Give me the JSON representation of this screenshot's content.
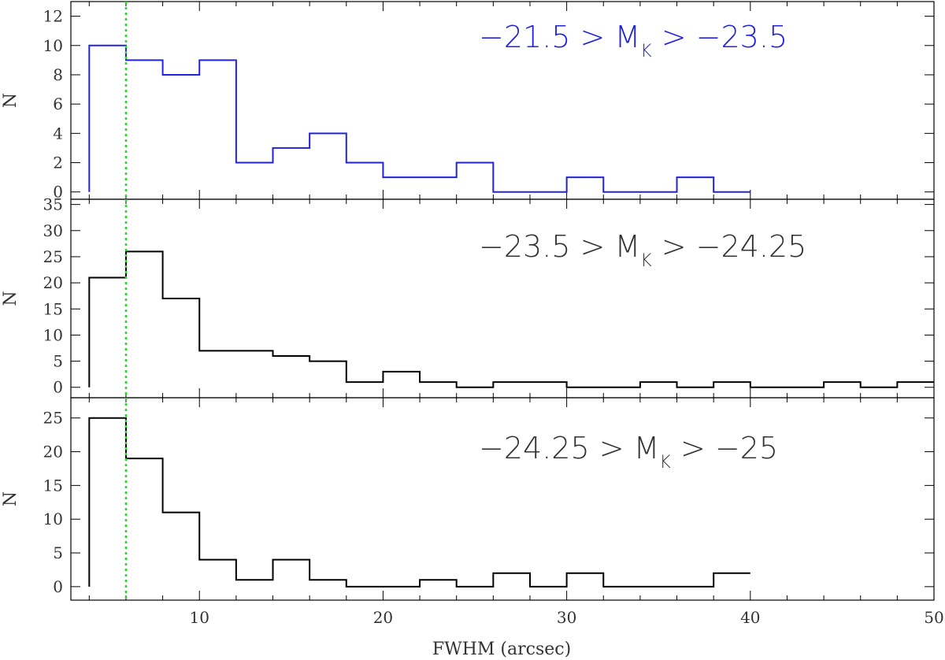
{
  "chart_data": {
    "type": "histogram",
    "xlabel": "FWHM (arcsec)",
    "xlim": [
      3,
      50
    ],
    "xticks": [
      10,
      20,
      30,
      40,
      50
    ],
    "reference_line": {
      "x": 6,
      "color": "#22dd22",
      "style": "dotted"
    },
    "panels": [
      {
        "ylabel": "N",
        "ylim": [
          -0.5,
          13
        ],
        "yticks": [
          0,
          2,
          4,
          6,
          8,
          10,
          12
        ],
        "annotation": {
          "prefix": "−21.5 > M",
          "sub": "K",
          "suffix": " > −23.5"
        },
        "color": "#2222dd",
        "bin_edges": [
          4,
          6,
          8,
          10,
          12,
          14,
          16,
          18,
          20,
          22,
          24,
          26,
          28,
          30,
          32,
          34,
          36,
          38,
          40
        ],
        "counts": [
          10,
          9,
          8,
          9,
          2,
          3,
          4,
          2,
          1,
          1,
          2,
          0,
          0,
          1,
          0,
          0,
          1,
          0
        ]
      },
      {
        "ylabel": "N",
        "ylim": [
          -2,
          36
        ],
        "yticks": [
          0,
          5,
          10,
          15,
          20,
          25,
          30,
          35
        ],
        "annotation": {
          "prefix": "−23.5 > M",
          "sub": "K",
          "suffix": " > −24.25"
        },
        "color": "#000000",
        "bin_edges": [
          4,
          6,
          8,
          10,
          12,
          14,
          16,
          18,
          20,
          22,
          24,
          26,
          28,
          30,
          32,
          34,
          36,
          38,
          40,
          42,
          44,
          46,
          48,
          50
        ],
        "counts": [
          21,
          26,
          17,
          7,
          7,
          6,
          5,
          1,
          3,
          1,
          0,
          1,
          1,
          0,
          0,
          1,
          0,
          1,
          0,
          0,
          1,
          0,
          1
        ]
      },
      {
        "ylabel": "N",
        "ylim": [
          -2,
          28
        ],
        "yticks": [
          0,
          5,
          10,
          15,
          20,
          25
        ],
        "annotation": {
          "prefix": "−24.25 > M",
          "sub": "K",
          "suffix": " > −25"
        },
        "color": "#000000",
        "bin_edges": [
          4,
          6,
          8,
          10,
          12,
          14,
          16,
          18,
          20,
          22,
          24,
          26,
          28,
          30,
          32,
          34,
          36,
          38,
          40
        ],
        "counts": [
          25,
          19,
          11,
          4,
          1,
          4,
          1,
          0,
          0,
          1,
          0,
          2,
          0,
          2,
          0,
          0,
          0,
          2
        ]
      }
    ]
  }
}
